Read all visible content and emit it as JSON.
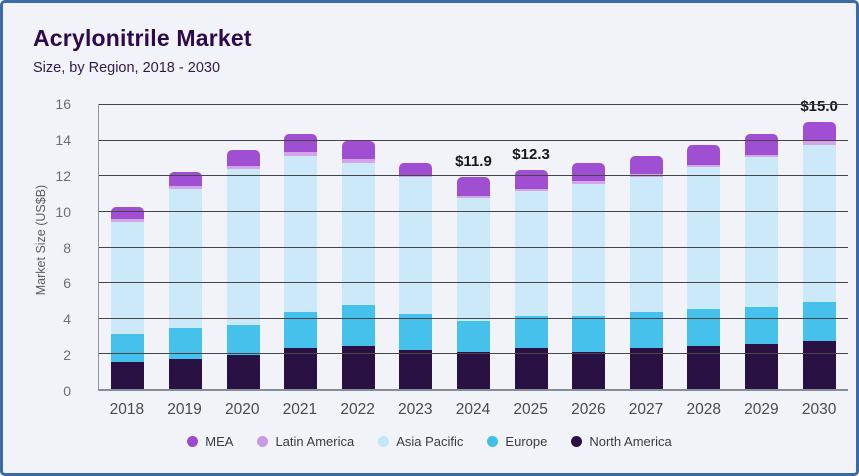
{
  "page": {
    "background": "#f1f3f9",
    "border_color": "#3a6ba5"
  },
  "header": {
    "title": "Acrylonitrile Market",
    "subtitle": "Size, by Region, 2018 - 2030"
  },
  "chart_data": {
    "type": "bar",
    "stacked": true,
    "title": "Acrylonitrile Market",
    "subtitle": "Size, by Region, 2018 - 2030",
    "xlabel": "",
    "ylabel": "Market Size (US$B)",
    "ylim": [
      0,
      16
    ],
    "yticks": [
      0,
      2,
      4,
      6,
      8,
      10,
      12,
      14,
      16
    ],
    "grid": "horizontal",
    "legend_position": "bottom",
    "categories": [
      "2018",
      "2019",
      "2020",
      "2021",
      "2022",
      "2023",
      "2024",
      "2025",
      "2026",
      "2027",
      "2028",
      "2029",
      "2030"
    ],
    "series": [
      {
        "name": "North America",
        "color": "#2a1144",
        "values": [
          1.5,
          1.7,
          1.9,
          2.3,
          2.4,
          2.2,
          2.1,
          2.3,
          2.1,
          2.3,
          2.4,
          2.5,
          2.7
        ]
      },
      {
        "name": "Europe",
        "color": "#45c1ec",
        "values": [
          1.6,
          1.7,
          1.7,
          2.0,
          2.3,
          2.0,
          1.7,
          1.8,
          2.0,
          2.0,
          2.1,
          2.1,
          2.2
        ]
      },
      {
        "name": "Asia Pacific",
        "color": "#cbe9f8",
        "values": [
          6.3,
          7.85,
          8.75,
          8.8,
          8.0,
          7.7,
          6.9,
          7.0,
          7.4,
          7.6,
          7.95,
          8.4,
          8.8
        ]
      },
      {
        "name": "Latin America",
        "color": "#d4a6e9",
        "values": [
          0.15,
          0.15,
          0.15,
          0.2,
          0.2,
          0.1,
          0.15,
          0.15,
          0.15,
          0.15,
          0.15,
          0.15,
          0.2
        ]
      },
      {
        "name": "MEA",
        "color": "#a04fd2",
        "values": [
          0.65,
          0.8,
          0.9,
          1.0,
          1.0,
          0.7,
          1.05,
          1.05,
          1.05,
          1.05,
          1.1,
          1.15,
          1.1
        ]
      }
    ],
    "totals": [
      10.2,
      12.2,
      13.4,
      14.3,
      13.9,
      12.7,
      11.9,
      12.3,
      12.7,
      13.1,
      13.7,
      14.3,
      15.0
    ],
    "annotations": [
      {
        "category": "2024",
        "text": "$11.9"
      },
      {
        "category": "2025",
        "text": "$12.3"
      },
      {
        "category": "2030",
        "text": "$15.0"
      }
    ],
    "legend": [
      {
        "name": "MEA",
        "color": "#9b4ad1"
      },
      {
        "name": "Latin America",
        "color": "#c79ae3"
      },
      {
        "name": "Asia Pacific",
        "color": "#c3e6f8"
      },
      {
        "name": "Europe",
        "color": "#41bfec"
      },
      {
        "name": "North America",
        "color": "#2a1144"
      }
    ]
  }
}
